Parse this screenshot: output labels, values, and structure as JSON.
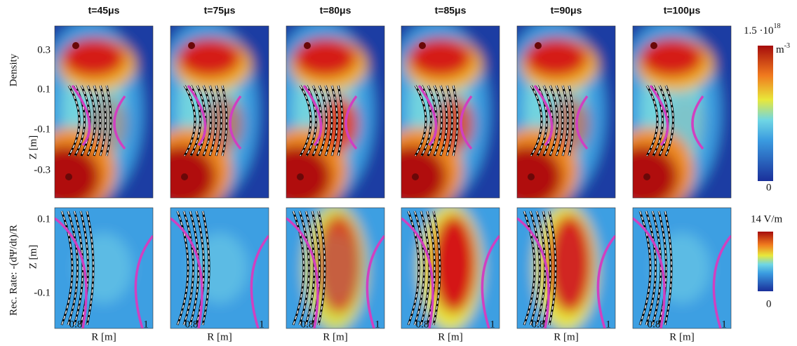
{
  "figure": {
    "columns": [
      "t=45μs",
      "t=75μs",
      "t=80μs",
      "t=85μs",
      "t=90μs",
      "t=100μs"
    ],
    "rows": [
      {
        "label": "Density",
        "y_axis": "Z [m]",
        "y_ticks": [
          "0.3",
          "0.1",
          "-0.1",
          "-0.3"
        ]
      },
      {
        "label": "Rec. Rate: -(dΨ/dt)/R",
        "y_axis": "Z [m]",
        "y_ticks": [
          "0.1",
          "-0.1"
        ]
      }
    ],
    "x_axis": "R [m]",
    "x_ticks": [
      "0.8",
      "1"
    ],
    "colorbars": [
      {
        "max": "1.5 ·10",
        "max_exp": "18",
        "unit": "m",
        "unit_exp": "-3",
        "min": "0"
      },
      {
        "max": "14 V/m",
        "min": "0"
      }
    ]
  }
}
